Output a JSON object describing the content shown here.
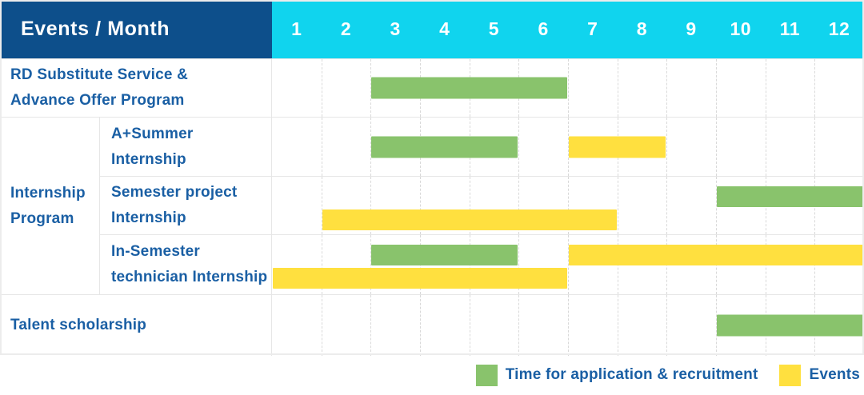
{
  "header": {
    "title": "Events / Month",
    "months": [
      "1",
      "2",
      "3",
      "4",
      "5",
      "6",
      "7",
      "8",
      "9",
      "10",
      "11",
      "12"
    ]
  },
  "group": {
    "label": "Internship\nProgram"
  },
  "rows": [
    {
      "label": "RD Substitute Service &\nAdvance Offer Program"
    },
    {
      "label": "A+Summer\nInternship"
    },
    {
      "label": "Semester project\nInternship"
    },
    {
      "label": "In-Semester\ntechnician Internship"
    },
    {
      "label": "Talent scholarship"
    }
  ],
  "legend": {
    "items": [
      {
        "label": "Time for application & recruitment",
        "color": "#89c36c"
      },
      {
        "label": "Events",
        "color": "#ffe03f"
      }
    ]
  },
  "colors": {
    "header_bg": "#0d4f8b",
    "months_bg": "#10d4ee",
    "label_text": "#1a5fa4",
    "application_green": "#89c36c",
    "events_yellow": "#ffe03f",
    "grid_dashed": "#d9d9d9",
    "grid_solid": "#e6e6e6"
  },
  "chart_data": {
    "type": "gantt",
    "title": "Events / Month",
    "x_axis": {
      "unit": "month",
      "ticks": [
        1,
        2,
        3,
        4,
        5,
        6,
        7,
        8,
        9,
        10,
        11,
        12
      ],
      "range": [
        1,
        12
      ]
    },
    "legend": [
      {
        "series": "Time for application & recruitment",
        "color": "#89c36c"
      },
      {
        "series": "Events",
        "color": "#ffe03f"
      }
    ],
    "legend_position": "bottom-right",
    "rows": [
      {
        "group": null,
        "label": "RD Substitute Service & Advance Offer Program",
        "bars": [
          {
            "series": "Time for application & recruitment",
            "color_key": "application",
            "start_month": 3,
            "end_month": 6
          }
        ]
      },
      {
        "group": "Internship Program",
        "label": "A+Summer Internship",
        "bars": [
          {
            "series": "Time for application & recruitment",
            "color_key": "application",
            "start_month": 3,
            "end_month": 5
          },
          {
            "series": "Events",
            "color_key": "events",
            "start_month": 7,
            "end_month": 8
          }
        ]
      },
      {
        "group": "Internship Program",
        "label": "Semester project Internship",
        "bars": [
          {
            "series": "Time for application & recruitment",
            "color_key": "application",
            "start_month": 10,
            "end_month": 12,
            "lane": 1
          },
          {
            "series": "Events",
            "color_key": "events",
            "start_month": 2,
            "end_month": 7,
            "lane": 2
          }
        ]
      },
      {
        "group": "Internship Program",
        "label": "In-Semester technician Internship",
        "bars": [
          {
            "series": "Time for application & recruitment",
            "color_key": "application",
            "start_month": 3,
            "end_month": 5,
            "lane": 1
          },
          {
            "series": "Events",
            "color_key": "events",
            "start_month": 7,
            "end_month": 12,
            "lane": 1
          },
          {
            "series": "Events",
            "color_key": "events",
            "start_month": 1,
            "end_month": 6,
            "lane": 2
          }
        ]
      },
      {
        "group": null,
        "label": "Talent scholarship",
        "bars": [
          {
            "series": "Time for application & recruitment",
            "color_key": "application",
            "start_month": 10,
            "end_month": 12
          }
        ]
      }
    ]
  }
}
